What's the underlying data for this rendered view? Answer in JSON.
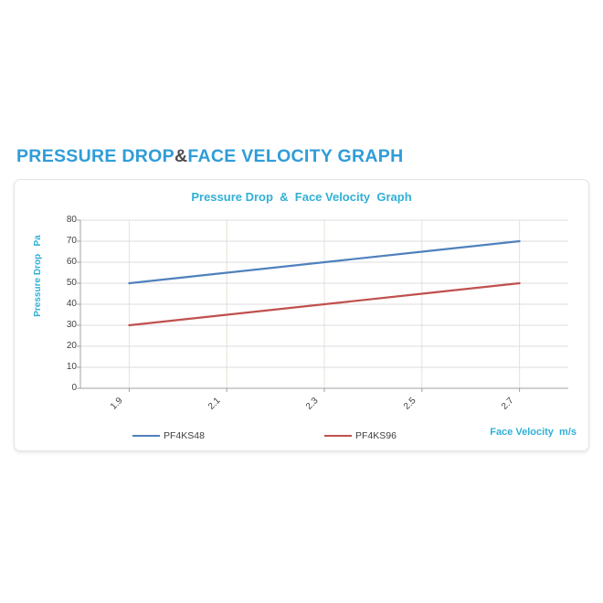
{
  "page": {
    "heading": {
      "part1": "PRESSURE DROP",
      "amp": "&",
      "part2": "FACE VELOCITY GRAPH"
    }
  },
  "chart_data": {
    "type": "line",
    "title": "Pressure Drop  &  Face Velocity  Graph",
    "x": [
      1.9,
      2.1,
      2.3,
      2.5,
      2.7
    ],
    "x_tick_labels": [
      "1.9",
      "2.1",
      "2.3",
      "2.5",
      "2.7"
    ],
    "series": [
      {
        "name": "PF4KS48",
        "color": "#4f81bd",
        "values": [
          50,
          55,
          60,
          65,
          70
        ]
      },
      {
        "name": "PF4KS96",
        "color": "#c0504d",
        "values": [
          30,
          35,
          40,
          45,
          50
        ]
      }
    ],
    "xlabel": "Face Velocity  m/s",
    "ylabel": "Pressure Drop   Pa",
    "ylim": [
      0,
      80
    ],
    "ytick_step": 10,
    "grid": true,
    "legend_position": "bottom"
  },
  "colors": {
    "heading_blue": "#2f9cd9",
    "heading_amp": "#4d4d4f",
    "cyan_text": "#31b0d6",
    "series_blue": "#4f81bd",
    "series_red": "#c0504d",
    "h_gridline": "#dcdcdc",
    "v_gridline": "#e8e2d4",
    "axis_line": "#a0a0a0",
    "tick_text": "#3f3f3f"
  }
}
